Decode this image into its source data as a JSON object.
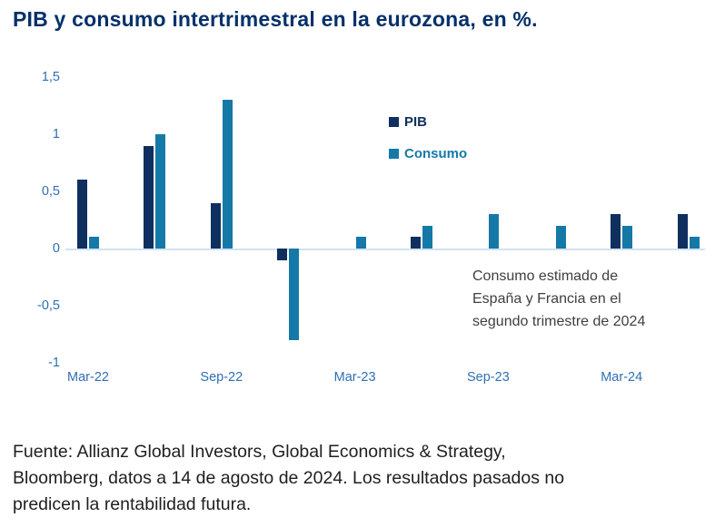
{
  "title": "PIB y consumo intertrimestral en la eurozona, en %.",
  "legend": {
    "pib_label": "PIB",
    "consumo_label": "Consumo"
  },
  "annotation_lines": [
    "Consumo estimado de",
    "España y Francia en el",
    "segundo trimestre de 2024"
  ],
  "footer_lines": [
    "Fuente: Allianz Global Investors, Global Economics & Strategy,",
    "Bloomberg, datos a 14 de agosto de 2024. Los resultados pasados no",
    "predicen la rentabilidad futura."
  ],
  "colors": {
    "title": "#04306a",
    "pib": "#0f2f5f",
    "consumo": "#1579a8",
    "axis_label": "#2e6fb5",
    "zero_line": "#cfe2f3",
    "annotation_text": "#3f3f3f",
    "footer_text": "#1f1f1f"
  },
  "chart_data": {
    "type": "bar",
    "title": "PIB y consumo intertrimestral en la eurozona, en %.",
    "categories": [
      "Mar-22",
      "Jun-22",
      "Sep-22",
      "Dec-22",
      "Mar-23",
      "Jun-23",
      "Sep-23",
      "Dec-23",
      "Mar-24",
      "Jun-24"
    ],
    "series": [
      {
        "name": "PIB",
        "color": "#0f2f5f",
        "values": [
          0.6,
          0.9,
          0.4,
          -0.1,
          0.0,
          0.1,
          0.0,
          0.0,
          0.3,
          0.3
        ]
      },
      {
        "name": "Consumo",
        "color": "#1579a8",
        "values": [
          0.1,
          1.0,
          1.3,
          -0.8,
          0.1,
          0.2,
          0.3,
          0.2,
          0.2,
          0.1
        ]
      }
    ],
    "x_tick_labels": [
      "Mar-22",
      "Sep-22",
      "Mar-23",
      "Sep-23",
      "Mar-24"
    ],
    "x_tick_positions": [
      0,
      2,
      4,
      6,
      8
    ],
    "y_ticks": [
      {
        "label": "1,5",
        "value": 1.5
      },
      {
        "label": "1",
        "value": 1
      },
      {
        "label": "0,5",
        "value": 0.5
      },
      {
        "label": "0",
        "value": 0
      },
      {
        "label": "-0,5",
        "value": -0.5
      },
      {
        "label": "-1",
        "value": -1
      }
    ],
    "ylim": [
      -1,
      1.5
    ],
    "grid": false,
    "legend_position": "upper-center",
    "annotation": "Consumo estimado de España y Francia en el segundo trimestre de 2024"
  }
}
